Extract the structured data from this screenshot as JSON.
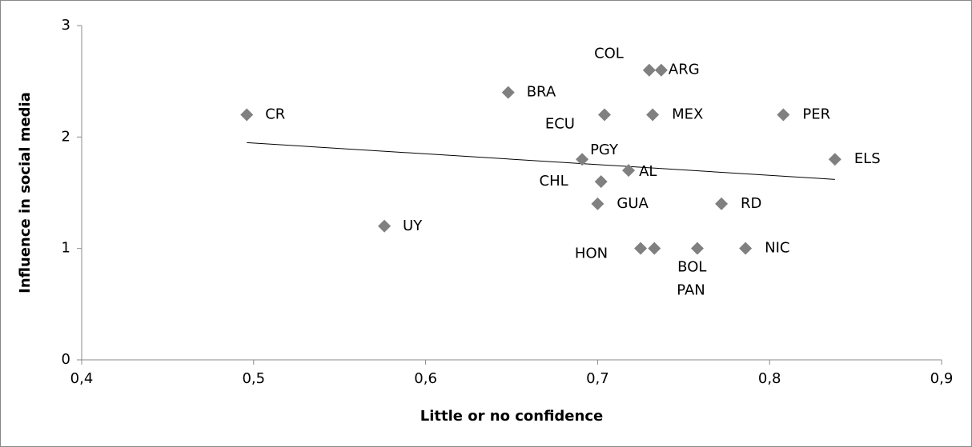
{
  "chart_data": {
    "type": "scatter",
    "xlabel": "Little or no confidence",
    "ylabel": "Influence in social media",
    "labels": [
      "CR",
      "UY",
      "BRA",
      "COL",
      "ARG",
      "ECU",
      "MEX",
      "PER",
      "ELS",
      "PGY",
      "AL",
      "CHL",
      "GUA",
      "RD",
      "HON",
      "BOL",
      "PAN",
      "NIC"
    ],
    "x": [
      0.496,
      0.576,
      0.648,
      0.73,
      0.737,
      0.704,
      0.732,
      0.808,
      0.838,
      0.691,
      0.718,
      0.702,
      0.7,
      0.772,
      0.725,
      0.733,
      0.758,
      0.786
    ],
    "values": [
      2.2,
      1.2,
      2.4,
      2.6,
      2.6,
      2.2,
      2.2,
      2.2,
      1.8,
      1.8,
      1.7,
      1.6,
      1.4,
      1.4,
      1.0,
      1.0,
      1.0,
      1.0
    ],
    "color": "#808080",
    "trendline": true,
    "xlim": [
      0.4,
      0.9
    ],
    "ylim": [
      0,
      3
    ],
    "xticks": [
      {
        "value": 0.4,
        "label": "0,4"
      },
      {
        "value": 0.5,
        "label": "0,5"
      },
      {
        "value": 0.6,
        "label": "0,6"
      },
      {
        "value": 0.7,
        "label": "0,7"
      },
      {
        "value": 0.8,
        "label": "0,8"
      },
      {
        "value": 0.9,
        "label": "0,9"
      }
    ],
    "yticks": [
      0,
      1,
      2,
      3
    ]
  }
}
